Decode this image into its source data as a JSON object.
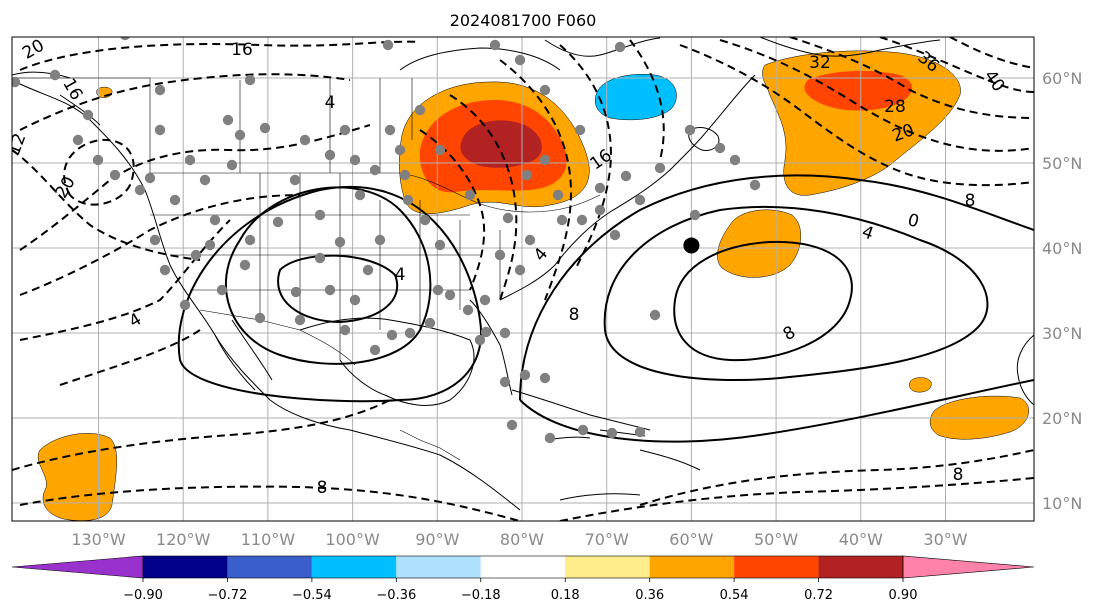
{
  "title": "2024081700 F060",
  "map": {
    "lon_labels": [
      "130°W",
      "120°W",
      "110°W",
      "100°W",
      "90°W",
      "80°W",
      "70°W",
      "60°W",
      "50°W",
      "40°W",
      "30°W"
    ],
    "lat_labels": [
      "60°N",
      "50°N",
      "40°N",
      "30°N",
      "20°N",
      "10°N"
    ],
    "contour_labels": [
      "20",
      "16",
      "12",
      "20",
      "16",
      "4",
      "4",
      "4",
      "4",
      "8",
      "0",
      "4",
      "8",
      "8",
      "8",
      "16",
      "20",
      "28",
      "32",
      "36",
      "40",
      "8"
    ],
    "marker": {
      "lon": -60.0,
      "lat": 40.3,
      "label": "center"
    }
  },
  "colorbar": {
    "tick_labels": [
      "−0.90",
      "−0.72",
      "−0.54",
      "−0.36",
      "−0.18",
      "0.18",
      "0.36",
      "0.54",
      "0.72",
      "0.90"
    ],
    "colors": [
      "#9932cc",
      "#00008b",
      "#3a5fcd",
      "#00bfff",
      "#b0e2ff",
      "#ffffff",
      "#ffec8b",
      "#ffa500",
      "#ff4500",
      "#b22222",
      "#ff82ab"
    ],
    "extend": "both"
  }
}
